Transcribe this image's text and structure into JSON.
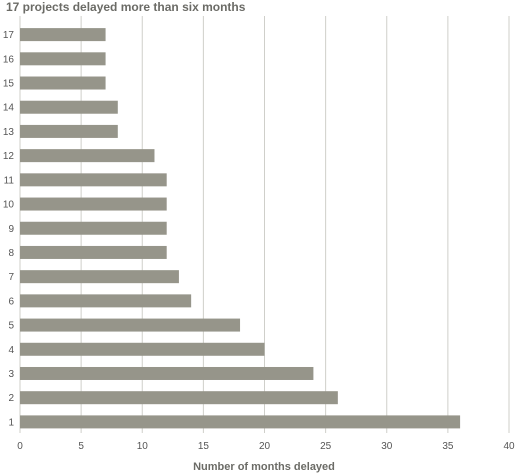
{
  "title": "17 projects delayed more than six months",
  "chart_data": {
    "type": "bar",
    "orientation": "horizontal",
    "title": "17 projects delayed more than six months",
    "xlabel": "Number of months delayed",
    "ylabel": "",
    "xlim": [
      0,
      40
    ],
    "xticks": [
      0,
      5,
      10,
      15,
      20,
      25,
      30,
      35,
      40
    ],
    "grid": true,
    "categories": [
      "1",
      "2",
      "3",
      "4",
      "5",
      "6",
      "7",
      "8",
      "9",
      "10",
      "11",
      "12",
      "13",
      "14",
      "15",
      "16",
      "17"
    ],
    "values": [
      36,
      26,
      24,
      20,
      18,
      14,
      13,
      12,
      12,
      12,
      12,
      11,
      8,
      8,
      7,
      7,
      7
    ],
    "bar_color": "#96958a",
    "grid_color": "#cfcfca"
  }
}
